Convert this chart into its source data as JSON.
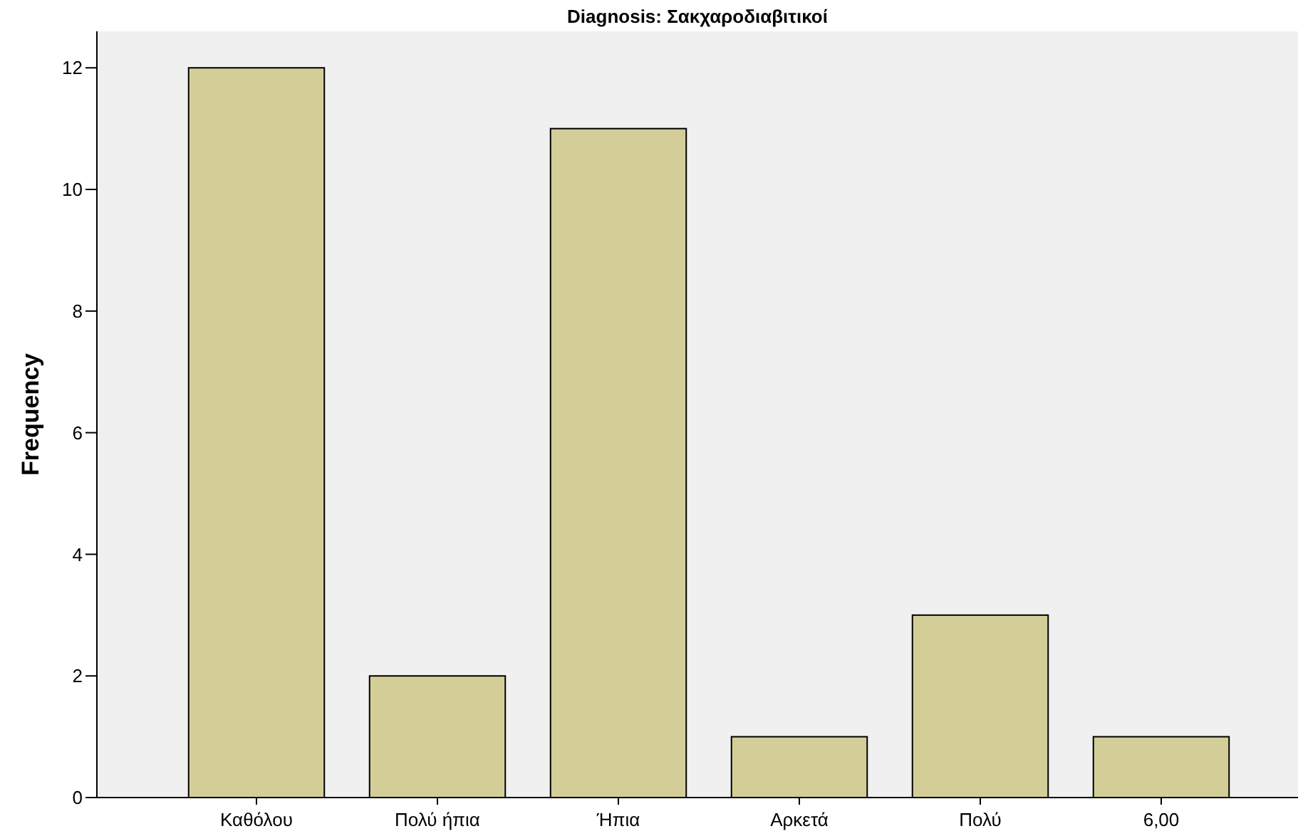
{
  "chart_data": {
    "type": "bar",
    "title": "Diagnosis: Σακχαροδιαβιτικοί",
    "ylabel": "Frequency",
    "categories": [
      "Καθόλου",
      "Πολύ ήπια",
      "Ήπια",
      "Αρκετά",
      "Πολύ",
      "6,00"
    ],
    "values": [
      12,
      2,
      11,
      1,
      3,
      1
    ],
    "color": "#d3ce97",
    "ylim": [
      0,
      12.6
    ],
    "yticks": [
      0,
      2,
      4,
      6,
      8,
      10,
      12
    ],
    "grid": false
  }
}
